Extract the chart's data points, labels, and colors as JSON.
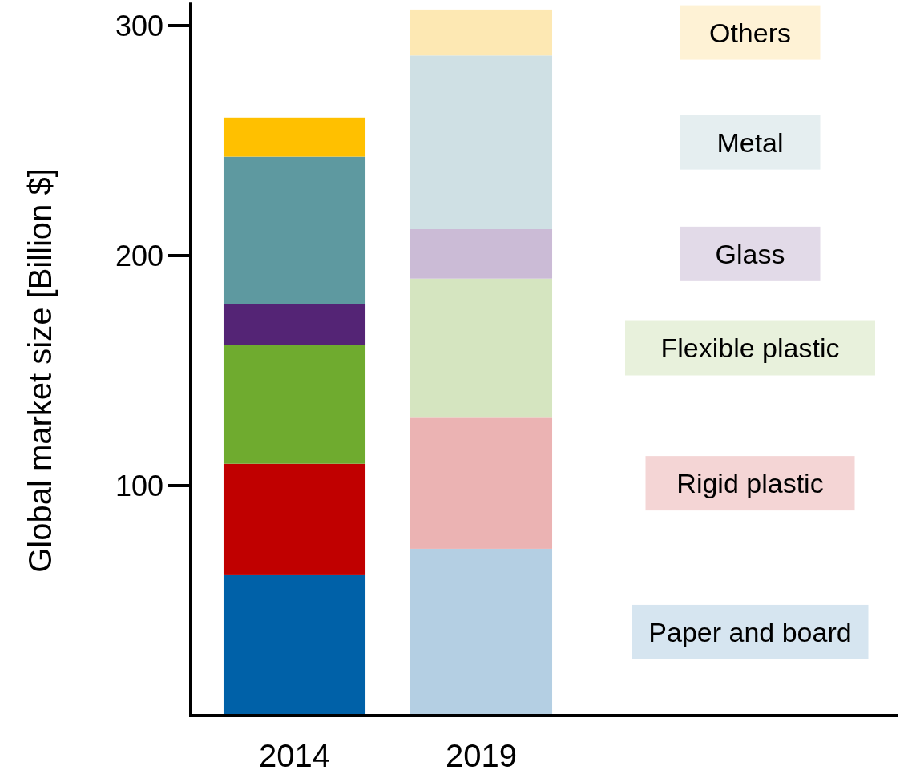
{
  "chart_data": {
    "type": "bar",
    "ylabel": "Global market size [Billion $]",
    "categories": [
      "2014",
      "2019"
    ],
    "stacked": true,
    "legend": "right",
    "ylim": [
      0,
      310
    ],
    "yticks": [
      100,
      200,
      300
    ],
    "series": [
      {
        "name": "Paper and board",
        "color": "#b4cfe3",
        "colors": [
          "#0061a8",
          "#b4cfe3"
        ],
        "values": [
          61,
          72.5
        ]
      },
      {
        "name": "Rigid plastic",
        "color": "#ebb3b3",
        "colors": [
          "#c00000",
          "#ebb3b3"
        ],
        "values": [
          48.5,
          57
        ]
      },
      {
        "name": "Flexible plastic",
        "color": "#d5e5c0",
        "colors": [
          "#6fab2f",
          "#d5e5c0"
        ],
        "values": [
          51.5,
          60.5
        ]
      },
      {
        "name": "Glass",
        "color": "#cbbbd6",
        "colors": [
          "#542475",
          "#cbbbd6"
        ],
        "values": [
          18,
          21.5
        ]
      },
      {
        "name": "Metal",
        "color": "#cfe0e4",
        "colors": [
          "#5e99a0",
          "#cfe0e4"
        ],
        "values": [
          64,
          75.5
        ]
      },
      {
        "name": "Others",
        "color": "#fde8b3",
        "colors": [
          "#ffc000",
          "#fde8b3"
        ],
        "values": [
          17,
          20
        ]
      }
    ]
  }
}
